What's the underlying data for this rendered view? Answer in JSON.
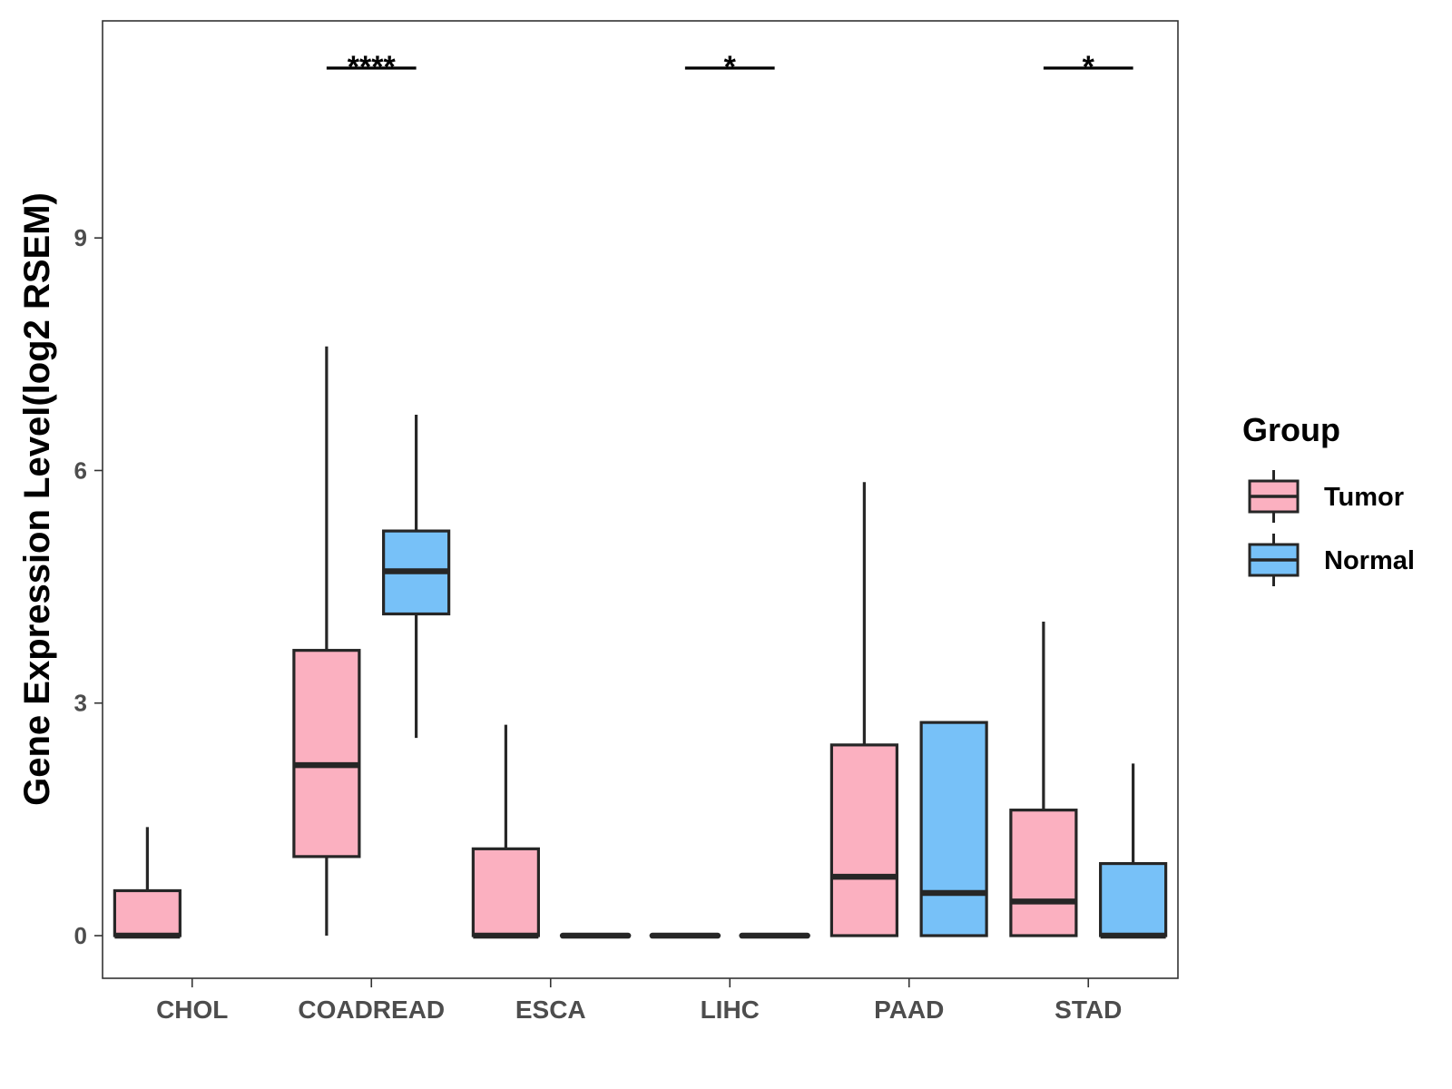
{
  "chart_data": {
    "type": "boxplot",
    "title": "",
    "xlabel": "",
    "ylabel": "Gene Expression Level(log2 RSEM)",
    "ylim": [
      -0.55,
      11.8
    ],
    "yticks": [
      0,
      3,
      6,
      9
    ],
    "yticks_labels": [
      "0",
      "3",
      "6",
      "9"
    ],
    "categories": [
      "CHOL",
      "COADREAD",
      "ESCA",
      "LIHC",
      "PAAD",
      "STAD"
    ],
    "legend": {
      "title": "Group",
      "position": "right",
      "entries": [
        {
          "name": "Tumor",
          "color": "#FBB0C0"
        },
        {
          "name": "Normal",
          "color": "#77C1F8"
        }
      ]
    },
    "series": [
      {
        "name": "Tumor",
        "color": "#FBB0C0",
        "boxes": [
          {
            "category": "CHOL",
            "min": 0,
            "q1": 0,
            "median": 0,
            "q3": 0.58,
            "max": 1.4
          },
          {
            "category": "COADREAD",
            "min": 0,
            "q1": 1.02,
            "median": 2.2,
            "q3": 3.68,
            "max": 7.6
          },
          {
            "category": "ESCA",
            "min": 0,
            "q1": 0,
            "median": 0,
            "q3": 1.12,
            "max": 2.72
          },
          {
            "category": "LIHC",
            "min": 0,
            "q1": 0,
            "median": 0,
            "q3": 0,
            "max": 0
          },
          {
            "category": "PAAD",
            "min": 0,
            "q1": 0,
            "median": 0.76,
            "q3": 2.46,
            "max": 5.85
          },
          {
            "category": "STAD",
            "min": 0,
            "q1": 0,
            "median": 0.44,
            "q3": 1.62,
            "max": 4.05
          }
        ]
      },
      {
        "name": "Normal",
        "color": "#77C1F8",
        "boxes": [
          {
            "category": "COADREAD",
            "min": 2.55,
            "q1": 4.15,
            "median": 4.7,
            "q3": 5.22,
            "max": 6.72
          },
          {
            "category": "ESCA",
            "min": 0,
            "q1": 0,
            "median": 0,
            "q3": 0,
            "max": 0
          },
          {
            "category": "LIHC",
            "min": 0,
            "q1": 0,
            "median": 0,
            "q3": 0,
            "max": 0
          },
          {
            "category": "PAAD",
            "min": 0,
            "q1": 0,
            "median": 0.55,
            "q3": 2.75,
            "max": 2.75
          },
          {
            "category": "STAD",
            "min": 0,
            "q1": 0,
            "median": 0,
            "q3": 0.93,
            "max": 2.22
          }
        ]
      }
    ],
    "significance": [
      {
        "category": "COADREAD",
        "label": "****"
      },
      {
        "category": "LIHC",
        "label": "*"
      },
      {
        "category": "STAD",
        "label": "*"
      }
    ]
  }
}
